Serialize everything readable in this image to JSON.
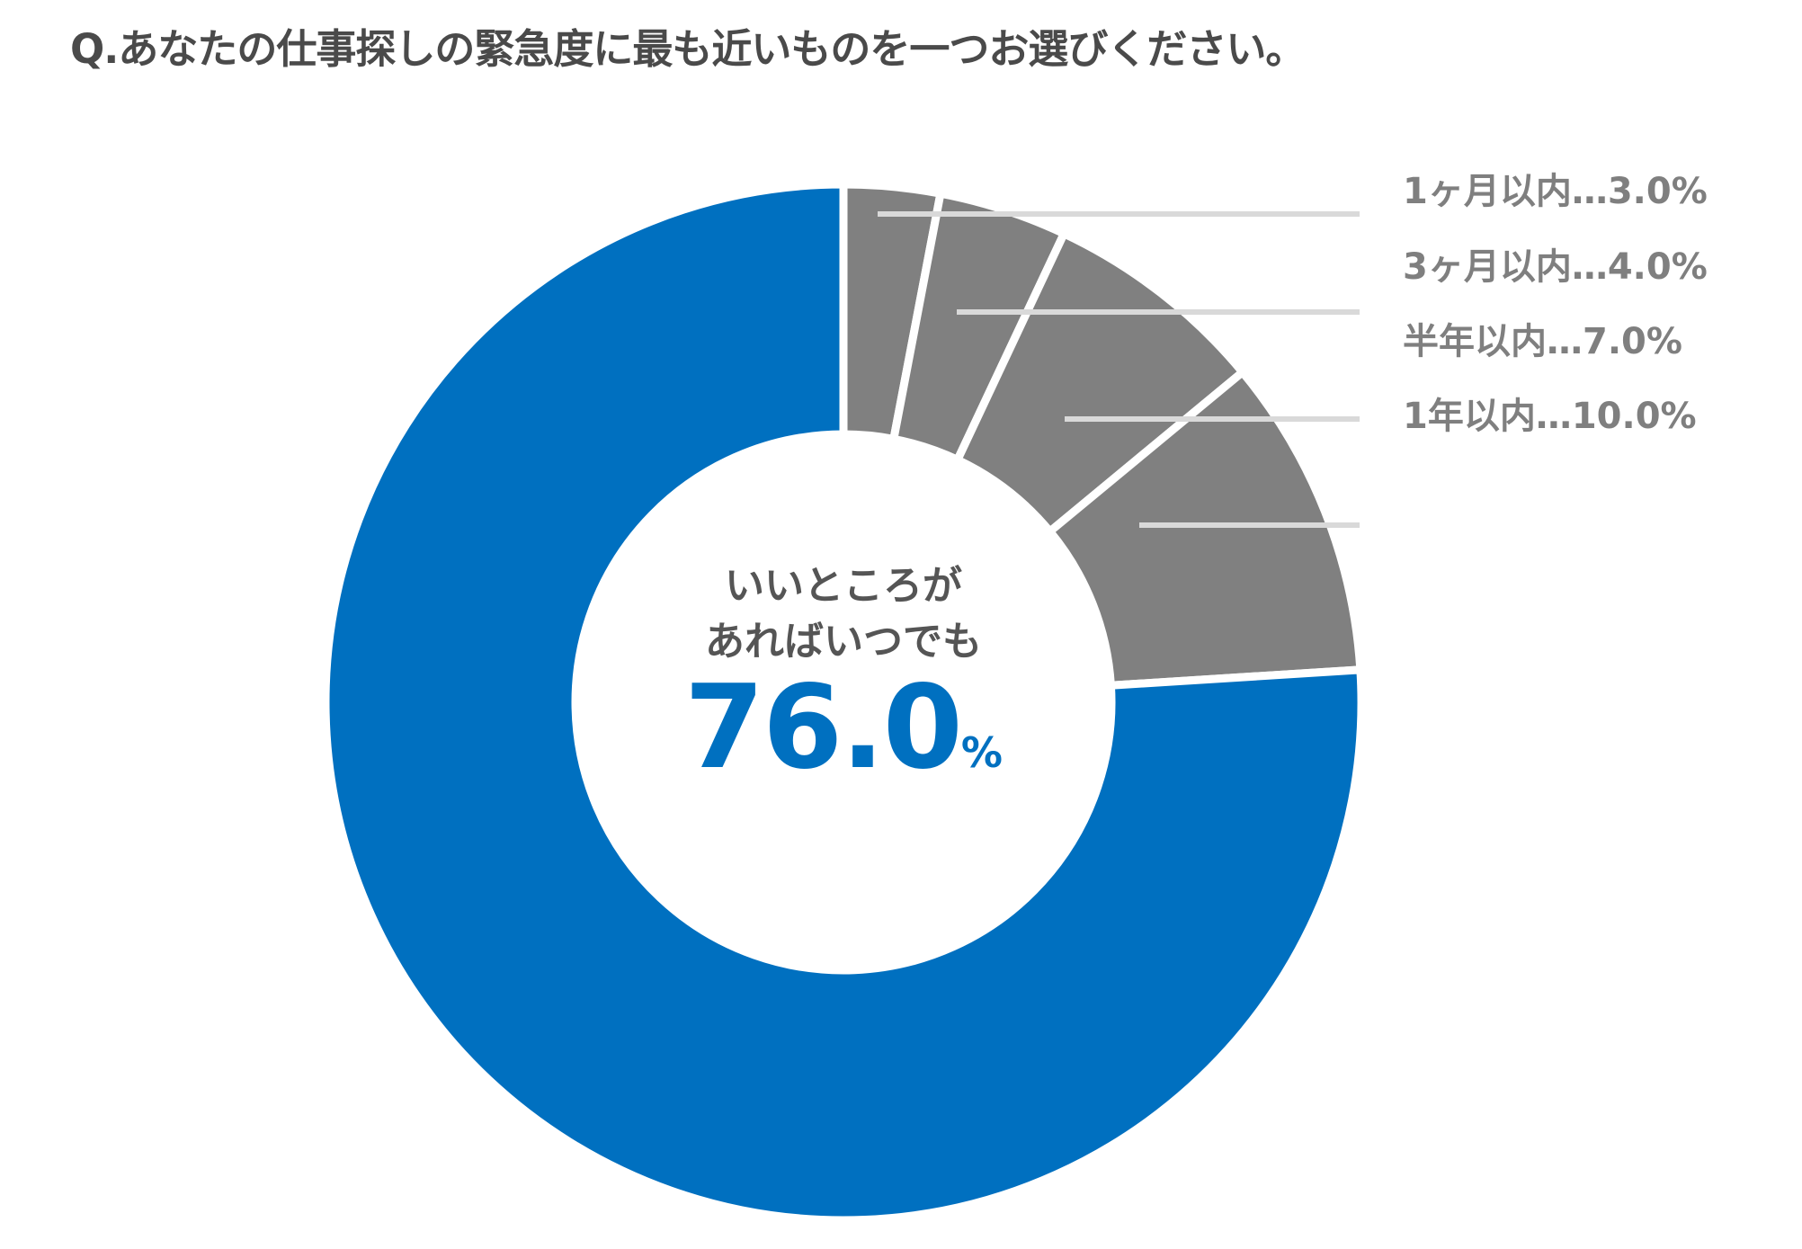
{
  "title": "Q.あなたの仕事探しの緊急度に最も近いものを一つお選びください。",
  "center": {
    "line1": "いいところが",
    "line2": "あればいつでも",
    "value": "76.0",
    "unit": "%"
  },
  "labels": [
    "1ヶ月以内…3.0%",
    "3ヶ月以内…4.0%",
    "半年以内…7.0%",
    "1年以内…10.0%"
  ],
  "chart_data": {
    "type": "pie",
    "subtype": "donut",
    "title": "Q.あなたの仕事探しの緊急度に最も近いものを一つお選びください。",
    "categories": [
      "1ヶ月以内",
      "3ヶ月以内",
      "半年以内",
      "1年以内",
      "いいところがあればいつでも"
    ],
    "values": [
      3.0,
      4.0,
      7.0,
      10.0,
      76.0
    ],
    "unit": "%",
    "colors": [
      "#808080",
      "#808080",
      "#808080",
      "#808080",
      "#0070c0"
    ],
    "start": "top, clockwise"
  }
}
